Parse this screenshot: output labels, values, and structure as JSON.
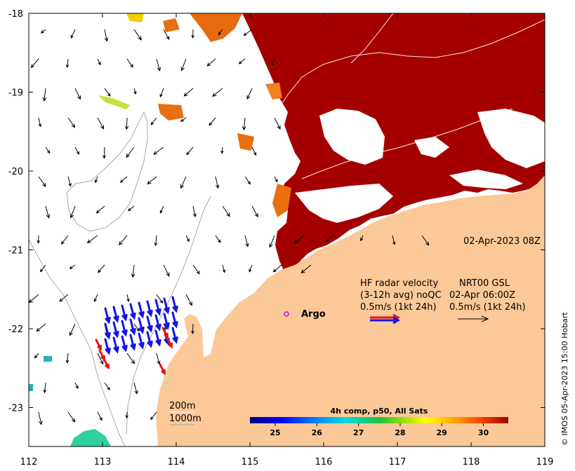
{
  "map": {
    "x_ticks": [
      "112",
      "113",
      "114",
      "115",
      "116",
      "117",
      "118",
      "119"
    ],
    "y_ticks": [
      "-18",
      "-19",
      "-20",
      "-21",
      "-22",
      "-23"
    ],
    "date_label": "02-Apr-2023 08Z",
    "credit": "© IMOS 05-Apr-2023 15:00 Hobart",
    "colors": {
      "sst_hot": "#a50000",
      "land": "#fbc898",
      "radar_qc": "#1414e6",
      "radar_noqc": "#e61414"
    }
  },
  "legend": {
    "line1_left": "HF radar velocity",
    "line1_right": "NRT00 GSL",
    "line2_left": "(3-12h avg) noQC",
    "line2_right": "02-Apr 06:00Z",
    "line3_left": "0.5m/s (1kt 24h)",
    "line3_right": "0.5m/s (1kt 24h)"
  },
  "argo": {
    "label": "Argo",
    "lon": 115.45,
    "lat": -21.85
  },
  "isobaths": {
    "shallow": "200m",
    "deep": "1000m"
  },
  "colorbar": {
    "title": "4h comp, p50, All Sats",
    "ticks": [
      "25",
      "26",
      "27",
      "28",
      "29",
      "30"
    ]
  }
}
